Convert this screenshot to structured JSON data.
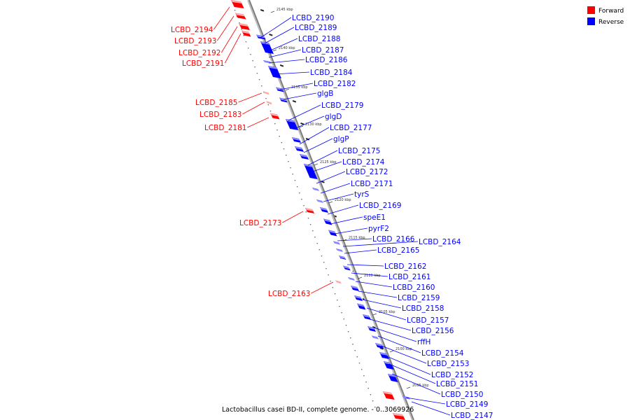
{
  "title": "Lactobacillus casei BD-II, complete genome. - 0..3069926",
  "legend": [
    {
      "label": "Forward",
      "color": "#ff0000"
    },
    {
      "label": "Reverse",
      "color": "#0000ff"
    }
  ],
  "colors": {
    "forward": "#ff0000",
    "reverse": "#0000ff",
    "backbone": "#999999"
  },
  "ticks": [
    "2145 kbp",
    "2140 kbp",
    "2135 kbp",
    "2130 kbp",
    "2125 kbp",
    "2120 kbp",
    "2115 kbp",
    "2110 kbp",
    "2105 kbp",
    "2100 kbp",
    "2095 kbp"
  ],
  "forward_genes": [
    "LCBD_2194",
    "LCBD_2193",
    "LCBD_2192",
    "LCBD_2191",
    "LCBD_2185",
    "LCBD_2183",
    "LCBD_2181",
    "LCBD_2173",
    "LCBD_2163"
  ],
  "reverse_genes": [
    "LCBD_2190",
    "LCBD_2189",
    "LCBD_2188",
    "LCBD_2187",
    "LCBD_2186",
    "LCBD_2184",
    "LCBD_2182",
    "glgB",
    "LCBD_2179",
    "glgD",
    "LCBD_2177",
    "glgP",
    "LCBD_2175",
    "LCBD_2174",
    "LCBD_2172",
    "LCBD_2171",
    "tyrS",
    "LCBD_2169",
    "speE1",
    "pyrF2",
    "LCBD_2166",
    "LCBD_2164",
    "LCBD_2165",
    "LCBD_2162",
    "LCBD_2161",
    "LCBD_2160",
    "LCBD_2159",
    "LCBD_2158",
    "LCBD_2157",
    "LCBD_2156",
    "rffH",
    "LCBD_2154",
    "LCBD_2153",
    "LCBD_2152",
    "LCBD_2151",
    "LCBD_2150",
    "LCBD_2149",
    "LCBD_2147"
  ]
}
